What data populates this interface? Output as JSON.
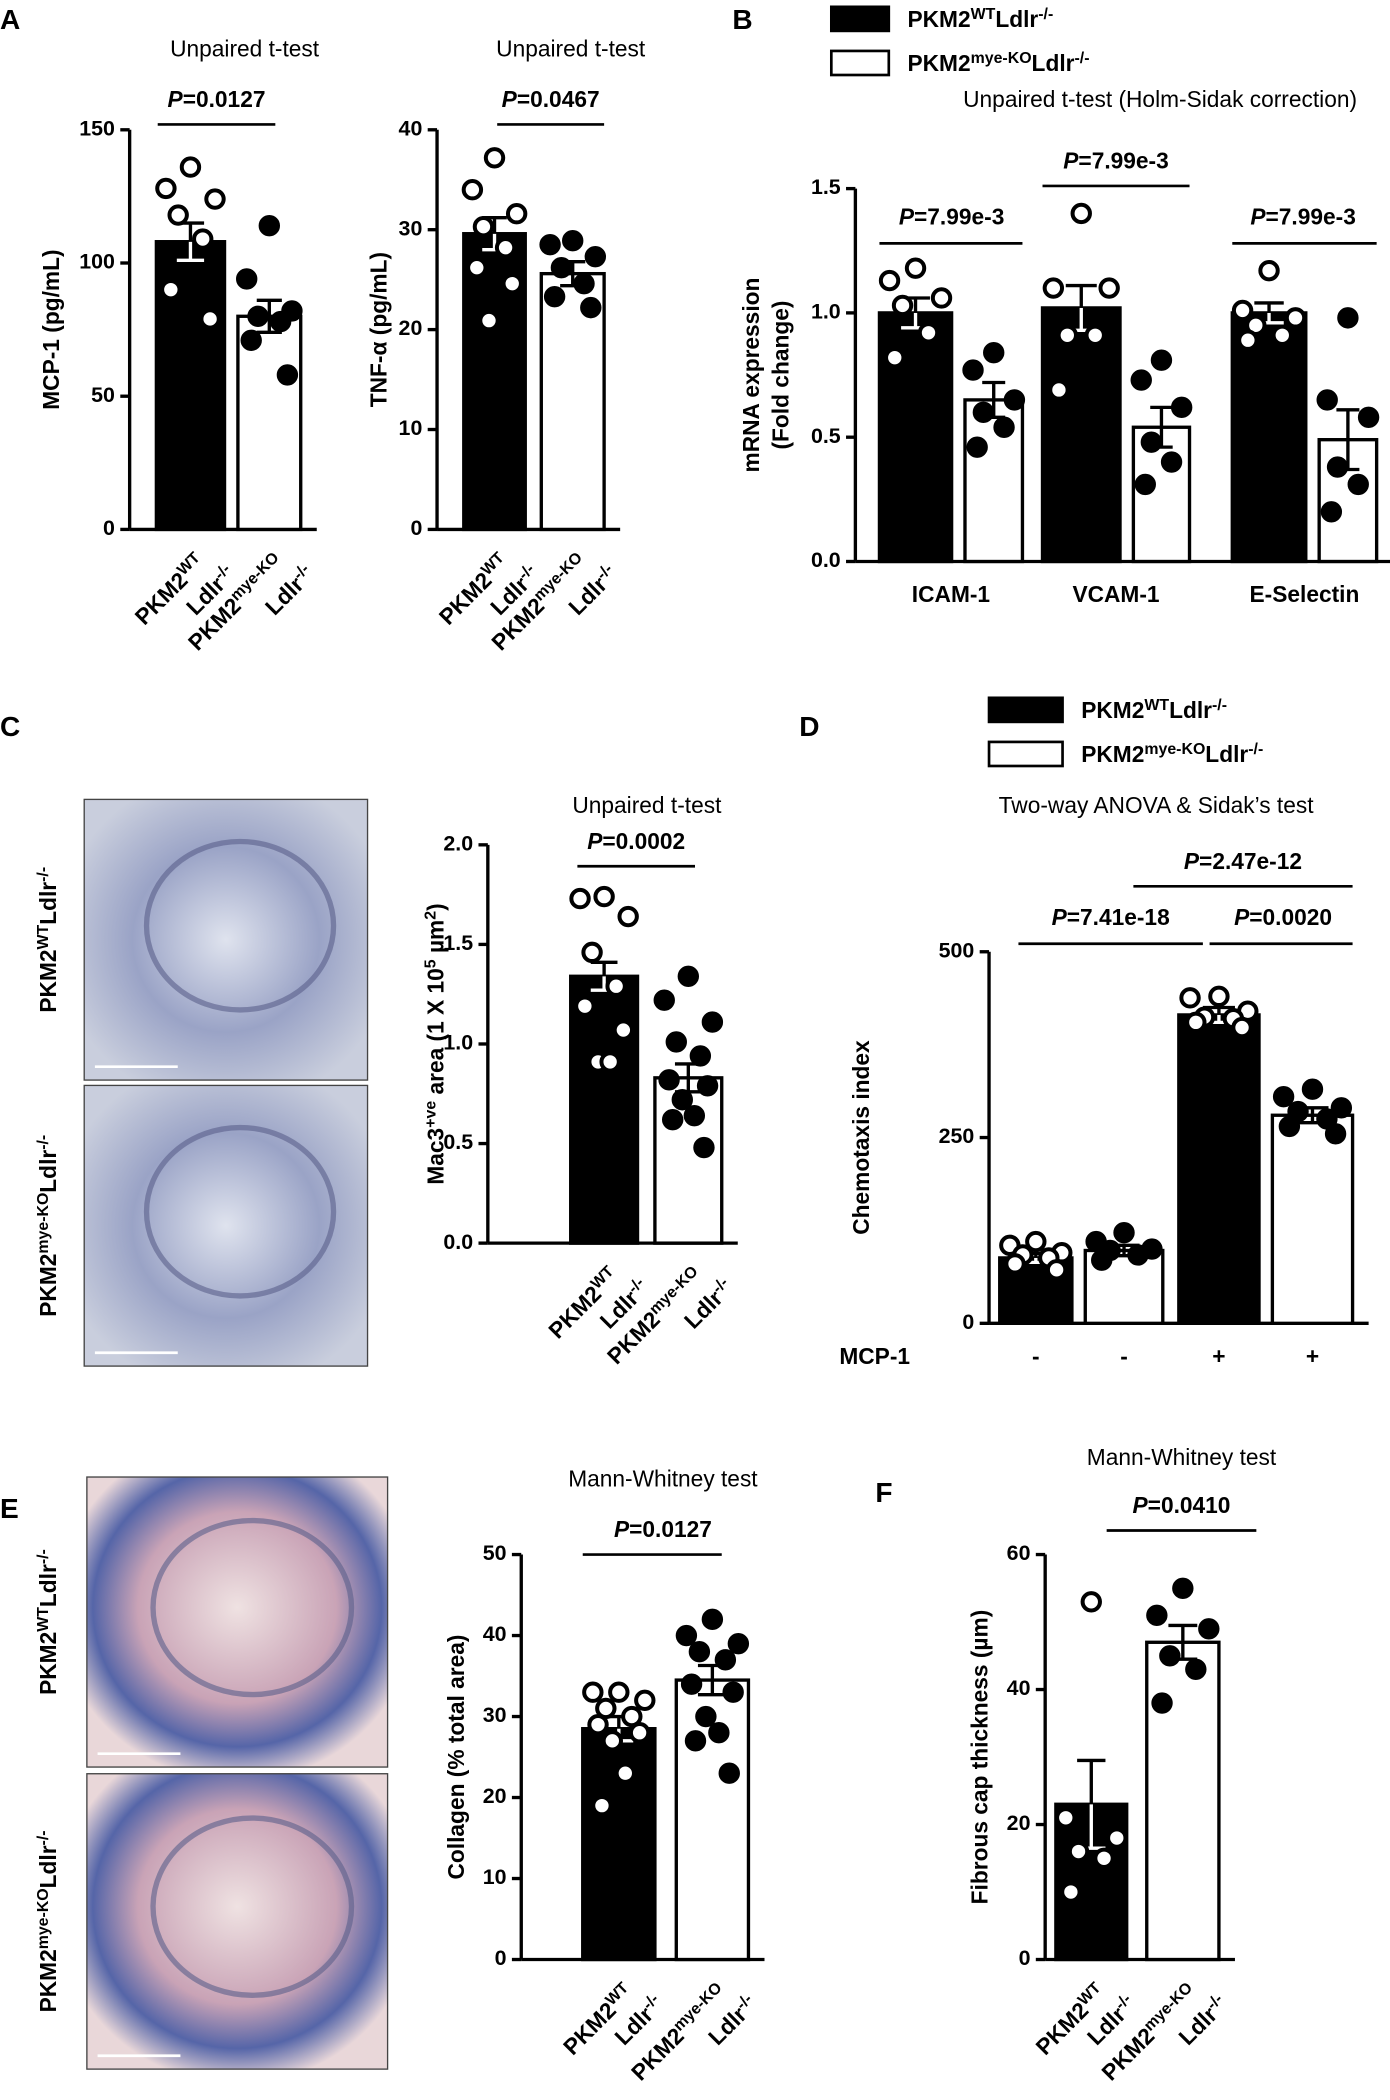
{
  "chart_data": [
    {
      "type": "bar",
      "panel": "A",
      "title": "Unpaired t-test",
      "ylabel": [
        [
          {
            "t": "MCP-1 (pg/mL)"
          }
        ]
      ],
      "categories": [
        [
          [
            {
              "t": "PKM2"
            },
            {
              "sup": "WT"
            }
          ],
          [
            {
              "t": "Ldlr"
            },
            {
              "sup": "-/-"
            }
          ]
        ],
        [
          [
            {
              "t": "PKM2"
            },
            {
              "sup": "mye-KO"
            }
          ],
          [
            {
              "t": "Ldlr"
            },
            {
              "sup": "-/-"
            }
          ]
        ]
      ],
      "values": [
        108,
        80
      ],
      "errors": [
        7,
        6
      ],
      "points": [
        [
          136,
          128,
          124,
          118,
          109,
          90,
          79
        ],
        [
          114,
          94,
          82,
          80,
          78,
          71,
          58
        ]
      ],
      "colors": [
        "#000000",
        "#ffffff"
      ],
      "ylim": [
        0,
        150
      ],
      "yticks": [
        0,
        50,
        100,
        150
      ],
      "annotations": [
        "P=0.0127"
      ]
    },
    {
      "type": "bar",
      "title": "Unpaired t-test",
      "ylabel": [
        [
          {
            "t": "TNF-α (pg/mL)"
          }
        ]
      ],
      "categories": [
        [
          [
            {
              "t": "PKM2"
            },
            {
              "sup": "WT"
            }
          ],
          [
            {
              "t": "Ldlr"
            },
            {
              "sup": "-/-"
            }
          ]
        ],
        [
          [
            {
              "t": "PKM2"
            },
            {
              "sup": "mye-KO"
            }
          ],
          [
            {
              "t": "Ldlr"
            },
            {
              "sup": "-/-"
            }
          ]
        ]
      ],
      "values": [
        29.6,
        25.6
      ],
      "errors": [
        1.6,
        1.2
      ],
      "points": [
        [
          37.2,
          34,
          31.6,
          30.3,
          28.2,
          26.2,
          24.6,
          20.9
        ],
        [
          28.9,
          28.5,
          27.3,
          26.2,
          24.6,
          23.3,
          22.2
        ]
      ],
      "colors": [
        "#000000",
        "#ffffff"
      ],
      "ylim": [
        0,
        40
      ],
      "yticks": [
        0,
        10,
        20,
        30,
        40
      ],
      "annotations": [
        "P=0.0467"
      ]
    },
    {
      "type": "bar",
      "panel": "B",
      "title": "Unpaired t-test (Holm-Sidak correction)",
      "ylabel": [
        [
          {
            "t": "mRNA expression"
          }
        ],
        [
          {
            "t": "(Fold change)"
          }
        ]
      ],
      "categories": [
        "ICAM-1",
        "VCAM-1",
        "E-Selectin"
      ],
      "series": [
        {
          "name": [
            [
              {
                "t": "PKM2"
              },
              {
                "sup": "WT"
              },
              {
                "t": "Ldlr"
              },
              {
                "sup": "-/-"
              }
            ]
          ],
          "color": "#000000",
          "values": [
            1.0,
            1.02,
            1.0
          ],
          "errors": [
            0.06,
            0.09,
            0.04
          ],
          "points": [
            [
              1.18,
              1.13,
              1.06,
              1.03,
              0.92,
              0.82
            ],
            [
              1.4,
              1.1,
              1.1,
              0.91,
              0.91,
              0.69
            ],
            [
              1.17,
              1.01,
              0.98,
              0.95,
              0.91,
              0.89
            ]
          ]
        },
        {
          "name": [
            [
              {
                "t": "PKM2"
              },
              {
                "sup": "mye-KO"
              },
              {
                "t": "Ldlr"
              },
              {
                "sup": "-/-"
              }
            ]
          ],
          "color": "#ffffff",
          "values": [
            0.65,
            0.54,
            0.49
          ],
          "errors": [
            0.07,
            0.08,
            0.12
          ],
          "points": [
            [
              0.84,
              0.77,
              0.65,
              0.6,
              0.54,
              0.46
            ],
            [
              0.81,
              0.73,
              0.62,
              0.48,
              0.4,
              0.31
            ],
            [
              0.98,
              0.65,
              0.58,
              0.38,
              0.31,
              0.2
            ]
          ]
        }
      ],
      "ylim": [
        0,
        1.5
      ],
      "yticks": [
        {
          "value": 0,
          "label": "0.0"
        },
        0.5,
        {
          "value": 1,
          "label": "1.0"
        },
        1.5
      ],
      "annotations": [
        "P=7.99e-3",
        "P=7.99e-3",
        "P=7.99e-3"
      ]
    },
    {
      "type": "bar",
      "panel": "C",
      "title": "Unpaired t-test",
      "image_labels": [
        [
          [
            {
              "t": "PKM2"
            },
            {
              "sup": "WT"
            },
            {
              "t": "Ldlr"
            },
            {
              "sup": "-/-"
            }
          ]
        ],
        [
          [
            {
              "t": "PKM2"
            },
            {
              "sup": "mye-KO"
            },
            {
              "t": "Ldlr"
            },
            {
              "sup": "-/-"
            }
          ]
        ]
      ],
      "ylabel": [
        [
          {
            "t": "Mac3"
          },
          {
            "sup": "+ve"
          },
          {
            "t": " area (1 X 10"
          },
          {
            "sup": "5"
          },
          {
            "t": " µm"
          },
          {
            "sup": "2"
          },
          {
            "t": ")"
          }
        ]
      ],
      "categories": [
        [
          [
            {
              "t": "PKM2"
            },
            {
              "sup": "WT"
            }
          ],
          [
            {
              "t": "Ldlr"
            },
            {
              "sup": "-/-"
            }
          ]
        ],
        [
          [
            {
              "t": "PKM2"
            },
            {
              "sup": "mye-KO"
            }
          ],
          [
            {
              "t": "Ldlr"
            },
            {
              "sup": "-/-"
            }
          ]
        ]
      ],
      "values": [
        1.34,
        0.83
      ],
      "errors": [
        0.07,
        0.07
      ],
      "points": [
        [
          1.74,
          1.73,
          1.64,
          1.46,
          1.29,
          1.19,
          1.07,
          0.91,
          0.91
        ],
        [
          1.34,
          1.22,
          1.11,
          1.01,
          0.94,
          0.82,
          0.79,
          0.72,
          0.64,
          0.62,
          0.48
        ]
      ],
      "colors": [
        "#000000",
        "#ffffff"
      ],
      "ylim": [
        0,
        2
      ],
      "yticks": [
        {
          "value": 0,
          "label": "0.0"
        },
        0.5,
        {
          "value": 1,
          "label": "1.0"
        },
        1.5,
        {
          "value": 2,
          "label": "2.0"
        }
      ],
      "annotations": [
        "P=0.0002"
      ]
    },
    {
      "type": "bar",
      "panel": "D",
      "title": "Two-way ANOVA & Sidak’s test",
      "legend": [
        {
          "name": [
            [
              {
                "t": "PKM2"
              },
              {
                "sup": "WT"
              },
              {
                "t": "Ldlr"
              },
              {
                "sup": "-/-"
              }
            ]
          ],
          "color": "#000000"
        },
        {
          "name": [
            [
              {
                "t": "PKM2"
              },
              {
                "sup": "mye-KO"
              },
              {
                "t": "Ldlr"
              },
              {
                "sup": "-/-"
              }
            ]
          ],
          "color": "#ffffff"
        }
      ],
      "ylabel": [
        [
          {
            "t": "Chemotaxis index"
          }
        ]
      ],
      "xlabel": "MCP-1",
      "categories": [
        "-",
        "-",
        "+",
        "+"
      ],
      "values": [
        88,
        98,
        415,
        280
      ],
      "errors": [
        6,
        7,
        10,
        10
      ],
      "points": [
        [
          110,
          105,
          95,
          92,
          88,
          80,
          72
        ],
        [
          122,
          110,
          100,
          98,
          92,
          85
        ],
        [
          440,
          438,
          420,
          412,
          410,
          405,
          398
        ],
        [
          315,
          305,
          290,
          285,
          275,
          265,
          255
        ]
      ],
      "colors": [
        "#000000",
        "#ffffff",
        "#000000",
        "#ffffff"
      ],
      "ylim": [
        0,
        500
      ],
      "yticks": [
        0,
        250,
        500
      ],
      "annotations": [
        "P=2.47e-12",
        "P=7.41e-18",
        "P=0.0020"
      ]
    },
    {
      "type": "bar",
      "panel": "E",
      "title": "Mann-Whitney test",
      "image_labels": [
        [
          [
            {
              "t": "PKM2"
            },
            {
              "sup": "WT"
            },
            {
              "t": "Ldlr"
            },
            {
              "sup": "-/-"
            }
          ]
        ],
        [
          [
            {
              "t": "PKM2"
            },
            {
              "sup": "mye-KO"
            },
            {
              "t": "Ldlr"
            },
            {
              "sup": "-/-"
            }
          ]
        ]
      ],
      "ylabel": [
        [
          {
            "t": "Collagen (% total area)"
          }
        ]
      ],
      "categories": [
        [
          [
            {
              "t": "PKM2"
            },
            {
              "sup": "WT"
            }
          ],
          [
            {
              "t": "Ldlr"
            },
            {
              "sup": "-/-"
            }
          ]
        ],
        [
          [
            {
              "t": "PKM2"
            },
            {
              "sup": "mye-KO"
            }
          ],
          [
            {
              "t": "Ldlr"
            },
            {
              "sup": "-/-"
            }
          ]
        ]
      ],
      "values": [
        28.5,
        34.5
      ],
      "errors": [
        1.5,
        1.8
      ],
      "points": [
        [
          33,
          33,
          32,
          31,
          30,
          29,
          28,
          27,
          23,
          19
        ],
        [
          42,
          40,
          39,
          38,
          37,
          34,
          33,
          30,
          28,
          27,
          23
        ]
      ],
      "colors": [
        "#000000",
        "#ffffff"
      ],
      "ylim": [
        0,
        50
      ],
      "yticks": [
        0,
        10,
        20,
        30,
        40,
        50
      ],
      "annotations": [
        "P=0.0127"
      ]
    },
    {
      "type": "bar",
      "panel": "F",
      "title": "Mann-Whitney test",
      "ylabel": [
        [
          {
            "t": "Fibrous cap thickness (µm)"
          }
        ]
      ],
      "categories": [
        [
          [
            {
              "t": "PKM2"
            },
            {
              "sup": "WT"
            }
          ],
          [
            {
              "t": "Ldlr"
            },
            {
              "sup": "-/-"
            }
          ]
        ],
        [
          [
            {
              "t": "PKM2"
            },
            {
              "sup": "mye-KO"
            }
          ],
          [
            {
              "t": "Ldlr"
            },
            {
              "sup": "-/-"
            }
          ]
        ]
      ],
      "values": [
        23,
        47
      ],
      "errors": [
        6.5,
        2.5
      ],
      "points": [
        [
          53,
          21,
          18,
          16,
          15,
          10
        ],
        [
          55,
          51,
          49,
          45,
          43,
          38
        ]
      ],
      "colors": [
        "#000000",
        "#ffffff"
      ],
      "ylim": [
        0,
        60
      ],
      "yticks": [
        0,
        20,
        40,
        60
      ],
      "annotations": [
        "P=0.0410"
      ]
    }
  ]
}
